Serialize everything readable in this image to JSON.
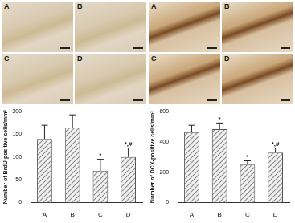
{
  "micrographs": [
    {
      "labels": [
        "A",
        "B",
        "C",
        "D"
      ]
    },
    {
      "labels": [
        "A",
        "B",
        "C",
        "D"
      ]
    }
  ],
  "chart_data": [
    {
      "type": "bar",
      "y_label": "Number of BrdU-positive cells/mm²",
      "categories": [
        "A",
        "B",
        "C",
        "D"
      ],
      "values": [
        140,
        165,
        70,
        100
      ],
      "errors": [
        30,
        28,
        25,
        20
      ],
      "color": "#8c8c8c",
      "ylim": [
        0,
        200
      ],
      "yticks": [
        0,
        50,
        100,
        150,
        200
      ],
      "grid": false,
      "annotations": [
        {
          "category": "C",
          "text": "*"
        },
        {
          "category": "D",
          "text": "*,#"
        }
      ]
    },
    {
      "type": "bar",
      "y_label": "Number of DCX-positive cells/mm²",
      "categories": [
        "A",
        "B",
        "C",
        "D"
      ],
      "values": [
        465,
        485,
        250,
        330
      ],
      "errors": [
        45,
        40,
        25,
        30
      ],
      "color": "#8c8c8c",
      "ylim": [
        0,
        600
      ],
      "yticks": [
        0,
        200,
        400,
        600
      ],
      "grid": false,
      "annotations": [
        {
          "category": "B",
          "text": "*"
        },
        {
          "category": "C",
          "text": "*"
        },
        {
          "category": "D",
          "text": "*,#"
        }
      ]
    }
  ]
}
